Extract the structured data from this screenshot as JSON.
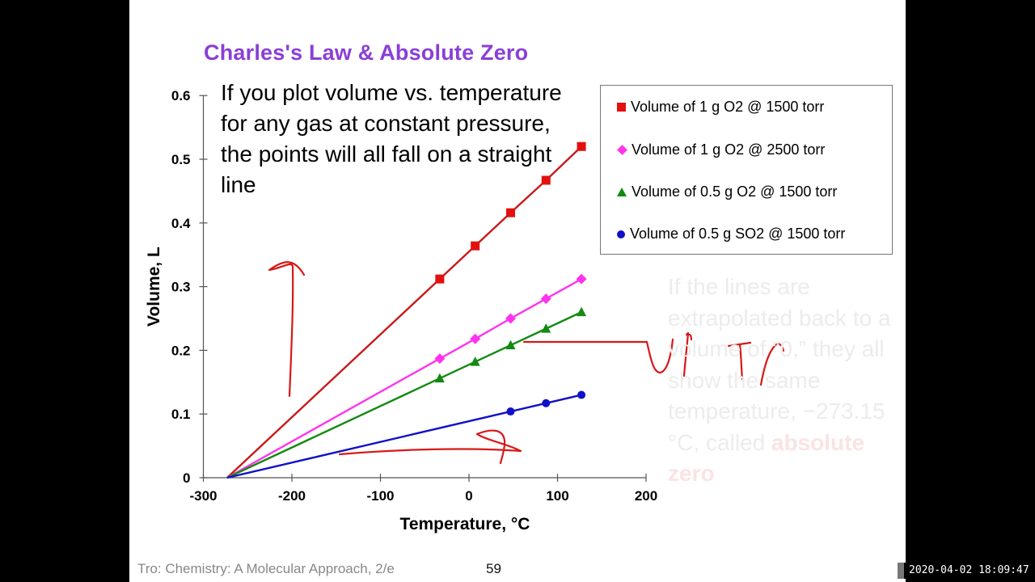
{
  "slide": {
    "title": "Charles's Law & Absolute Zero",
    "body_text": "If you plot volume vs. temperature for any gas at constant pressure, the points will all fall on a straight line",
    "faded_text": "If the lines are extrapolated back to a volume of “0,” they all show the same temperature, −273.15 °C, called",
    "faded_highlight": "absolute zero",
    "footer": "Tro: Chemistry: A Molecular Approach, 2/e",
    "page_number": "59"
  },
  "overlay": {
    "timestamp": "2020-04-02 18:09:47"
  },
  "colors": {
    "title": "#8a3fd6",
    "red": "#e31010",
    "red_line": "#c81a1a",
    "magenta": "#ff33ee",
    "green": "#138a13",
    "blue": "#1010c8",
    "annotation_pen": "#d81818"
  },
  "legend": {
    "items": [
      {
        "label": "Volume of 1 g O2 @ 1500 torr",
        "marker": "square",
        "color": "#e31010"
      },
      {
        "label": "Volume of 1 g O2 @ 2500 torr",
        "marker": "diamond",
        "color": "#ff33ee"
      },
      {
        "label": "Volume of 0.5 g O2 @ 1500 torr",
        "marker": "triangle",
        "color": "#138a13"
      },
      {
        "label": "Volume of 0.5 g SO2 @ 1500 torr",
        "marker": "circle",
        "color": "#1010c8"
      }
    ]
  },
  "chart_data": {
    "type": "line",
    "title": "Charles's Law & Absolute Zero",
    "xlabel": "Temperature, °C",
    "ylabel": "Volume, L",
    "xlim": [
      -300,
      200
    ],
    "ylim": [
      0,
      0.6
    ],
    "x_ticks": [
      "-300",
      "-200",
      "-100",
      "0",
      "100",
      "200"
    ],
    "y_ticks": [
      "0",
      "0.1",
      "0.2",
      "0.3",
      "0.4",
      "0.5",
      "0.6"
    ],
    "grid": false,
    "legend_position": "upper right",
    "extrapolation_origin": {
      "x": -273.15,
      "y": 0
    },
    "series": [
      {
        "name": "Volume of 1 g O2 @ 1500 torr",
        "color": "#e31010",
        "marker": "square",
        "x": [
          -33,
          7,
          47,
          87,
          127
        ],
        "values": [
          0.312,
          0.364,
          0.416,
          0.467,
          0.52
        ]
      },
      {
        "name": "Volume of 1 g O2 @ 2500 torr",
        "color": "#ff33ee",
        "marker": "diamond",
        "x": [
          -33,
          7,
          47,
          87,
          127
        ],
        "values": [
          0.187,
          0.218,
          0.25,
          0.281,
          0.312
        ]
      },
      {
        "name": "Volume of 0.5 g O2 @ 1500 torr",
        "color": "#138a13",
        "marker": "triangle",
        "x": [
          -33,
          7,
          47,
          87,
          127
        ],
        "values": [
          0.156,
          0.182,
          0.208,
          0.234,
          0.26
        ]
      },
      {
        "name": "Volume of 0.5 g SO2 @ 1500 torr",
        "color": "#1010c8",
        "marker": "circle",
        "x": [
          47,
          87,
          127
        ],
        "values": [
          0.104,
          0.117,
          0.13
        ]
      }
    ]
  }
}
